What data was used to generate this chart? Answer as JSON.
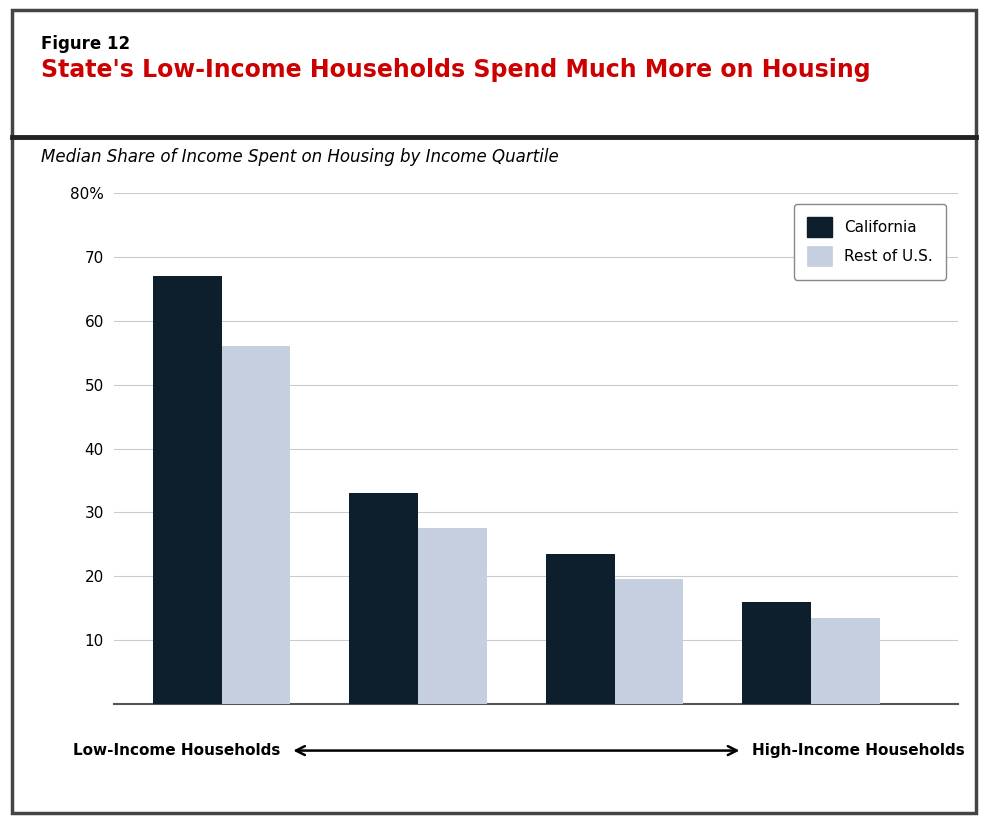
{
  "figure_label": "Figure 12",
  "title": "State's Low-Income Households Spend Much More on Housing",
  "subtitle": "Median Share of Income Spent on Housing by Income Quartile",
  "california_values": [
    67,
    33,
    23.5,
    16
  ],
  "rest_of_us_values": [
    56,
    27.5,
    19.5,
    13.5
  ],
  "california_color": "#0d1f2d",
  "rest_of_us_color": "#c5cfe0",
  "ylim": [
    0,
    80
  ],
  "yticks": [
    10,
    20,
    30,
    40,
    50,
    60,
    70,
    80
  ],
  "ytick_labels": [
    "10",
    "20",
    "30",
    "40",
    "50",
    "60",
    "70",
    "80%"
  ],
  "legend_labels": [
    "California",
    "Rest of U.S."
  ],
  "arrow_left_label": "Low-Income Households",
  "arrow_right_label": "High-Income Households",
  "title_color": "#cc0000",
  "figure_label_color": "#000000",
  "subtitle_color": "#000000",
  "background_color": "#ffffff",
  "bar_width": 0.35,
  "group_positions": [
    1,
    2,
    3,
    4
  ],
  "border_color": "#555555",
  "grid_color": "#cccccc",
  "title_fontsize": 17,
  "figure_label_fontsize": 12,
  "subtitle_fontsize": 12,
  "axis_fontsize": 11,
  "legend_fontsize": 11
}
